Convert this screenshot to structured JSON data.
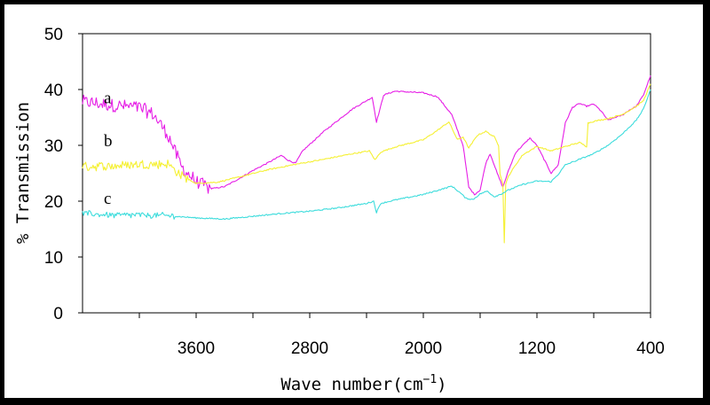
{
  "chart_data": {
    "type": "line",
    "title": "",
    "xlabel": "Wave number(cm",
    "xlabel_sup": "−1",
    "xlabel_close": ")",
    "ylabel": "% Transmission",
    "xlim": [
      4400,
      400
    ],
    "ylim": [
      0,
      50
    ],
    "x_tick_labels": [
      "3600",
      "2800",
      "2000",
      "1200",
      "400"
    ],
    "x_ticks": [
      3600,
      2800,
      2000,
      1200,
      400
    ],
    "x_minor_ticks": [
      4000,
      3200,
      2400,
      1600,
      800
    ],
    "y_tick_labels": [
      "0",
      "10",
      "20",
      "30",
      "40",
      "50"
    ],
    "y_ticks": [
      0,
      10,
      20,
      30,
      40,
      50
    ],
    "grid": false,
    "series": [
      {
        "name": "a",
        "color": "#e61ee6",
        "noise_until": 3500,
        "noise_amp": 1.2,
        "points": [
          [
            4400,
            37.8
          ],
          [
            4200,
            37.2
          ],
          [
            4000,
            36.8
          ],
          [
            3900,
            35.5
          ],
          [
            3800,
            32
          ],
          [
            3700,
            26
          ],
          [
            3600,
            23.5
          ],
          [
            3500,
            22.2
          ],
          [
            3400,
            22.6
          ],
          [
            3300,
            24
          ],
          [
            3200,
            25.5
          ],
          [
            3100,
            26.8
          ],
          [
            3000,
            28.2
          ],
          [
            2950,
            27.3
          ],
          [
            2900,
            26.8
          ],
          [
            2850,
            29
          ],
          [
            2700,
            32.5
          ],
          [
            2500,
            36.5
          ],
          [
            2360,
            38.6
          ],
          [
            2330,
            34.2
          ],
          [
            2300,
            37
          ],
          [
            2280,
            39
          ],
          [
            2200,
            39.7
          ],
          [
            2000,
            39.4
          ],
          [
            1900,
            38.7
          ],
          [
            1800,
            35.5
          ],
          [
            1720,
            30
          ],
          [
            1680,
            22.5
          ],
          [
            1640,
            21.2
          ],
          [
            1600,
            22
          ],
          [
            1560,
            26.8
          ],
          [
            1530,
            28.5
          ],
          [
            1500,
            26.5
          ],
          [
            1480,
            25
          ],
          [
            1440,
            22.5
          ],
          [
            1400,
            25.5
          ],
          [
            1350,
            28.7
          ],
          [
            1300,
            30
          ],
          [
            1250,
            31.3
          ],
          [
            1200,
            30
          ],
          [
            1150,
            27.5
          ],
          [
            1100,
            25
          ],
          [
            1050,
            26.5
          ],
          [
            1000,
            34
          ],
          [
            950,
            36.8
          ],
          [
            900,
            37.5
          ],
          [
            850,
            37
          ],
          [
            800,
            37.4
          ],
          [
            750,
            36.2
          ],
          [
            700,
            34.5
          ],
          [
            650,
            35
          ],
          [
            600,
            35.4
          ],
          [
            550,
            36.3
          ],
          [
            500,
            37
          ],
          [
            450,
            39
          ],
          [
            400,
            42.5
          ]
        ]
      },
      {
        "name": "b",
        "color": "#f5f032",
        "noise_until": 3650,
        "noise_amp": 0.8,
        "points": [
          [
            4400,
            26.2
          ],
          [
            4200,
            26.3
          ],
          [
            4000,
            26.6
          ],
          [
            3800,
            26.7
          ],
          [
            3700,
            24.5
          ],
          [
            3600,
            23.2
          ],
          [
            3450,
            23.4
          ],
          [
            3300,
            24.3
          ],
          [
            3100,
            25.6
          ],
          [
            2900,
            26.6
          ],
          [
            2700,
            27.5
          ],
          [
            2500,
            28.5
          ],
          [
            2380,
            29
          ],
          [
            2340,
            27.4
          ],
          [
            2300,
            28.8
          ],
          [
            2200,
            29.7
          ],
          [
            2000,
            31
          ],
          [
            1900,
            32.7
          ],
          [
            1820,
            34.2
          ],
          [
            1760,
            31
          ],
          [
            1720,
            31.5
          ],
          [
            1680,
            29.5
          ],
          [
            1620,
            31.8
          ],
          [
            1560,
            32.5
          ],
          [
            1500,
            31.5
          ],
          [
            1470,
            30
          ],
          [
            1460,
            25
          ],
          [
            1440,
            23
          ],
          [
            1430,
            12.5
          ],
          [
            1420,
            23
          ],
          [
            1400,
            24.5
          ],
          [
            1350,
            26.5
          ],
          [
            1300,
            28.3
          ],
          [
            1200,
            29.8
          ],
          [
            1100,
            29
          ],
          [
            1000,
            29.8
          ],
          [
            900,
            30.5
          ],
          [
            850,
            29.8
          ],
          [
            840,
            34
          ],
          [
            800,
            34.3
          ],
          [
            700,
            34.8
          ],
          [
            600,
            35.5
          ],
          [
            500,
            37
          ],
          [
            450,
            38
          ],
          [
            400,
            41
          ]
        ]
      },
      {
        "name": "c",
        "color": "#3cdcdc",
        "noise_until": 3750,
        "noise_amp": 0.5,
        "points": [
          [
            4400,
            17.8
          ],
          [
            4200,
            17.5
          ],
          [
            4000,
            17.5
          ],
          [
            3800,
            17.4
          ],
          [
            3600,
            17
          ],
          [
            3400,
            16.8
          ],
          [
            3200,
            17.3
          ],
          [
            3000,
            17.8
          ],
          [
            2800,
            18.2
          ],
          [
            2600,
            18.8
          ],
          [
            2400,
            19.6
          ],
          [
            2350,
            20
          ],
          [
            2330,
            18
          ],
          [
            2300,
            19.6
          ],
          [
            2200,
            20.2
          ],
          [
            2000,
            21.2
          ],
          [
            1850,
            22.3
          ],
          [
            1800,
            22.7
          ],
          [
            1740,
            21.5
          ],
          [
            1700,
            20.5
          ],
          [
            1650,
            20.3
          ],
          [
            1600,
            21.3
          ],
          [
            1550,
            21.8
          ],
          [
            1500,
            20.8
          ],
          [
            1450,
            21.3
          ],
          [
            1400,
            22
          ],
          [
            1300,
            23
          ],
          [
            1200,
            23.6
          ],
          [
            1100,
            23.5
          ],
          [
            1050,
            24.8
          ],
          [
            1000,
            26.5
          ],
          [
            900,
            27.5
          ],
          [
            800,
            28.5
          ],
          [
            700,
            30
          ],
          [
            600,
            32
          ],
          [
            500,
            34.5
          ],
          [
            450,
            36.5
          ],
          [
            400,
            40
          ]
        ]
      }
    ]
  }
}
